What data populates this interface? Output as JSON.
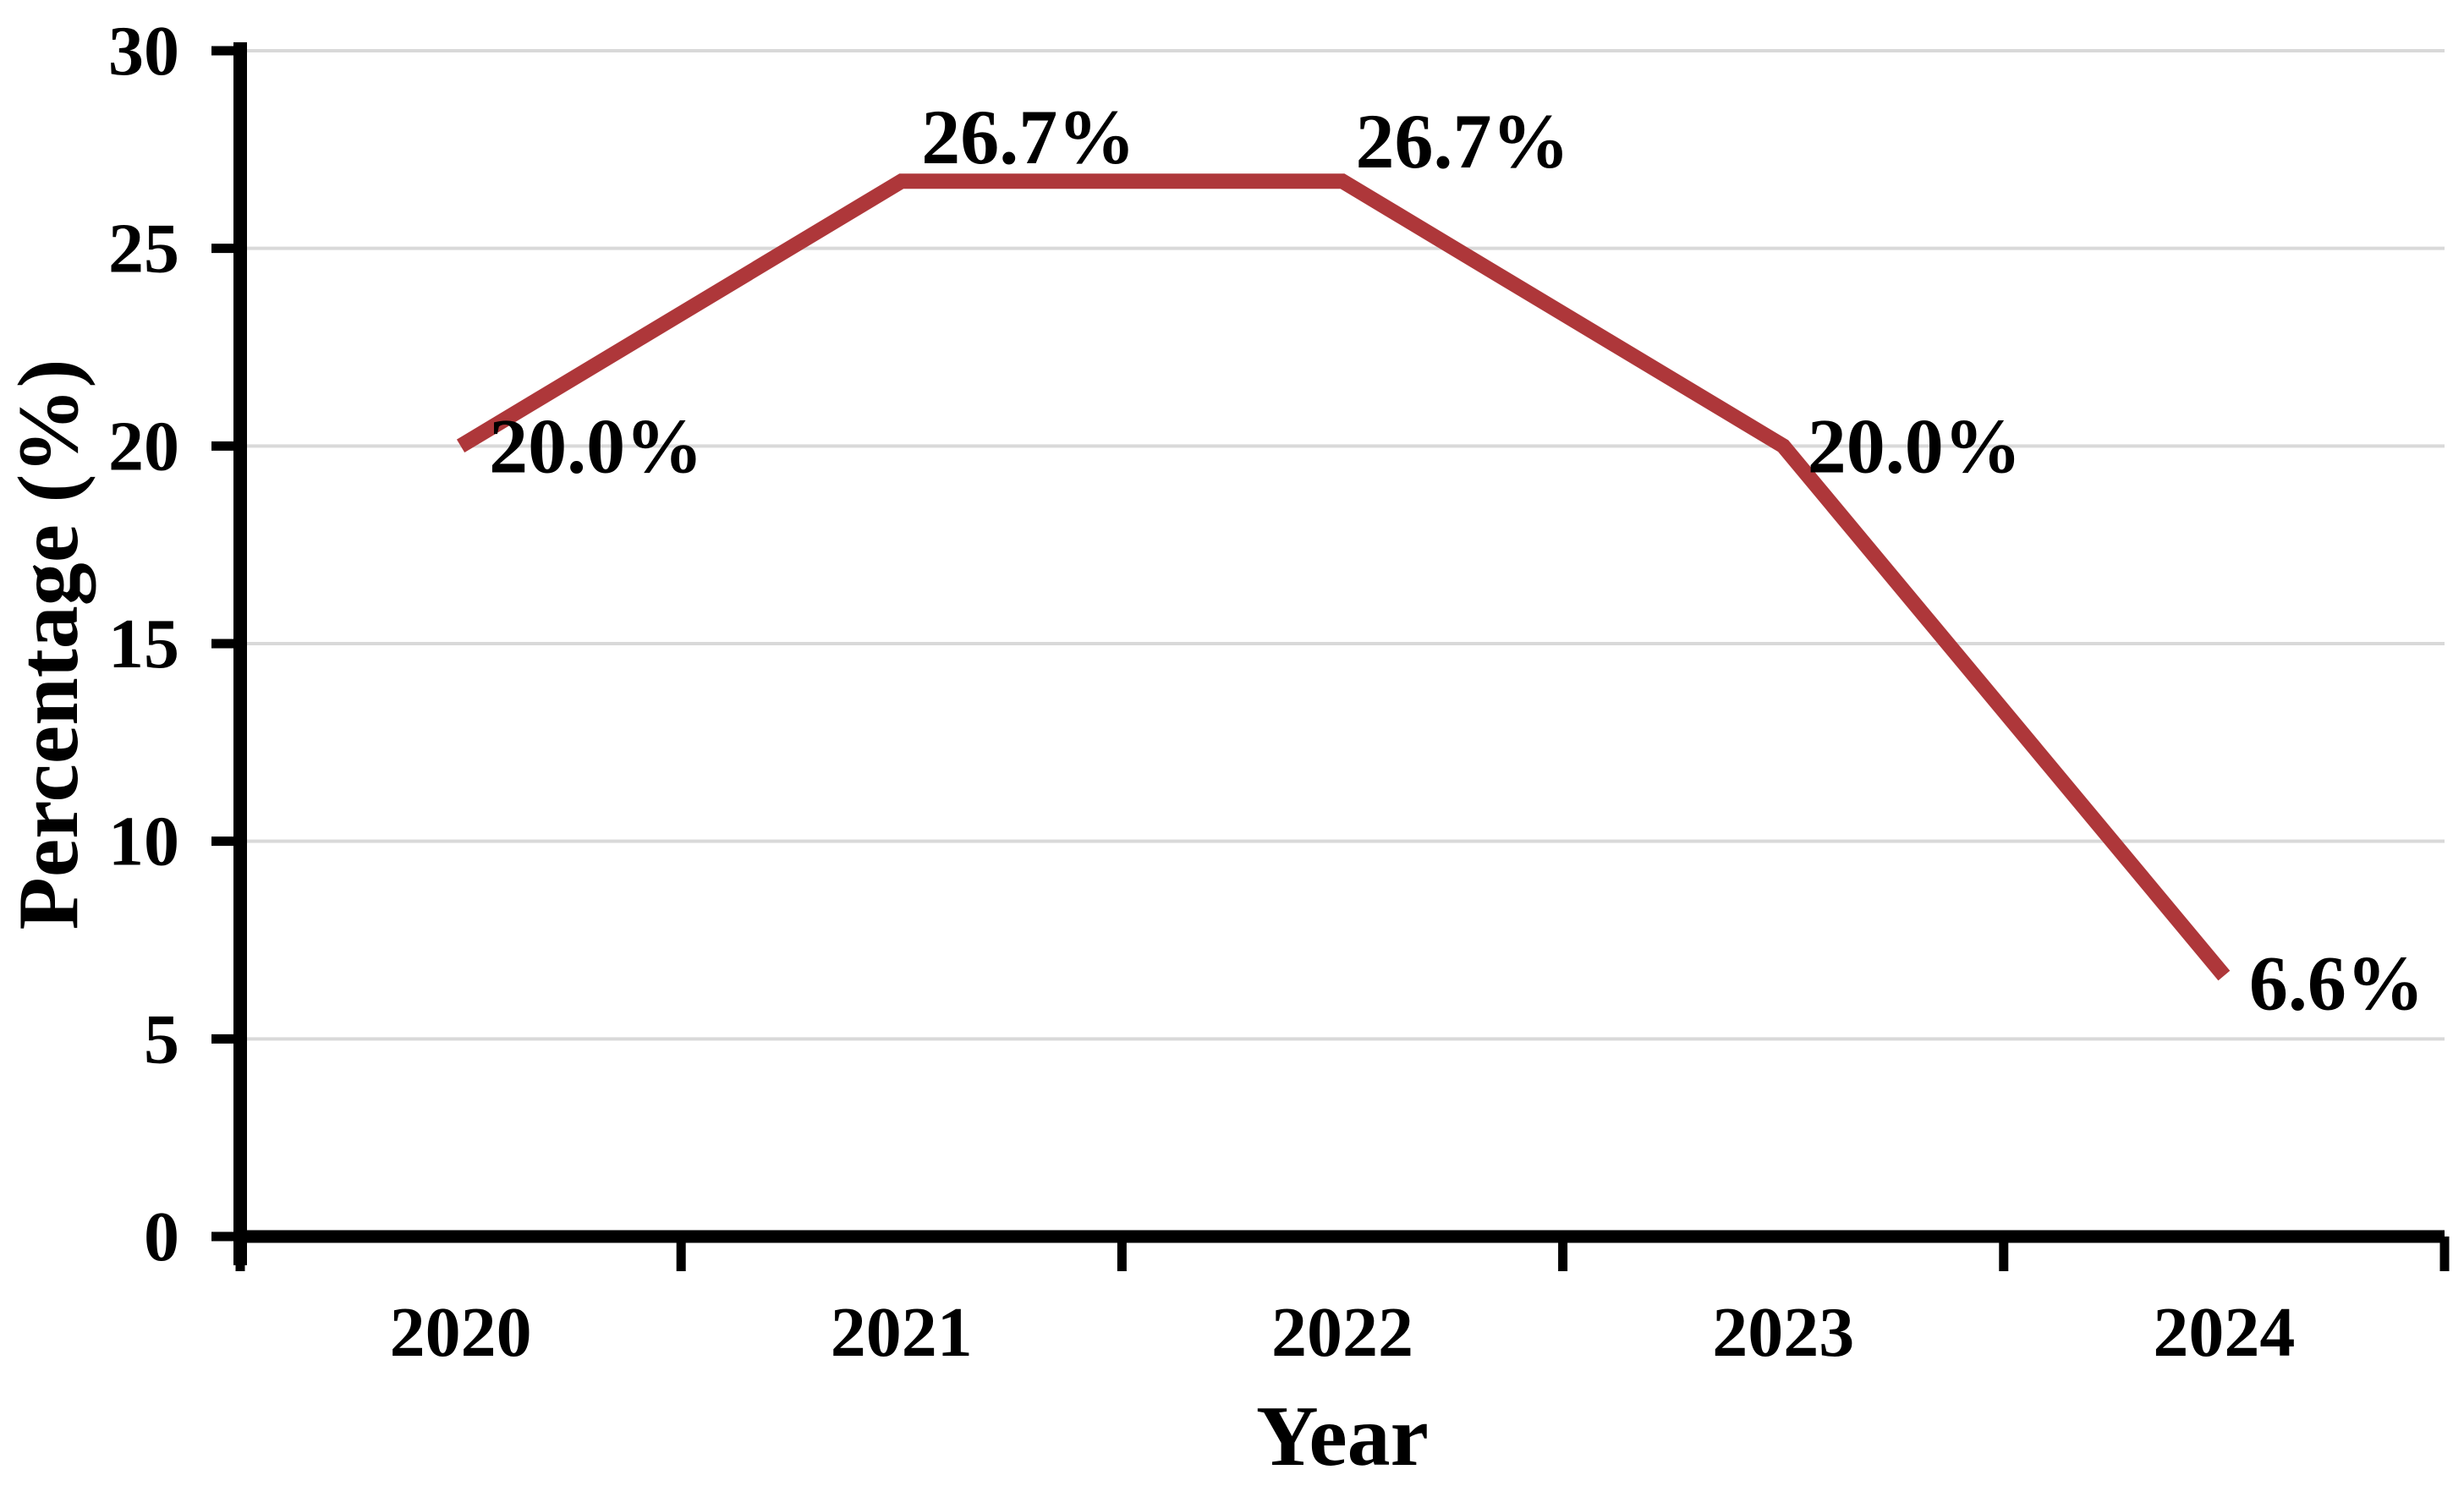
{
  "chart_data": {
    "type": "line",
    "title": "",
    "xlabel": "Year",
    "ylabel": "Percentage (%)",
    "categories": [
      "2020",
      "2021",
      "2022",
      "2023",
      "2024"
    ],
    "series": [
      {
        "name": "Percentage",
        "values": [
          20.0,
          26.7,
          26.7,
          20.0,
          6.6
        ]
      }
    ],
    "data_labels": [
      "20.0%",
      "26.7%",
      "26.7%",
      "20.0%",
      "6.6%"
    ],
    "ylim": [
      0,
      30
    ],
    "yticks": [
      0,
      5,
      10,
      15,
      20,
      25,
      30
    ],
    "ytick_labels": [
      "0",
      "5",
      "10",
      "15",
      "20",
      "25",
      "30"
    ],
    "grid": "horizontal",
    "legend": "none",
    "colors": {
      "line": "#AE373A",
      "gridline": "#D9D9D9",
      "axis": "#000000",
      "text": "#000000"
    }
  }
}
